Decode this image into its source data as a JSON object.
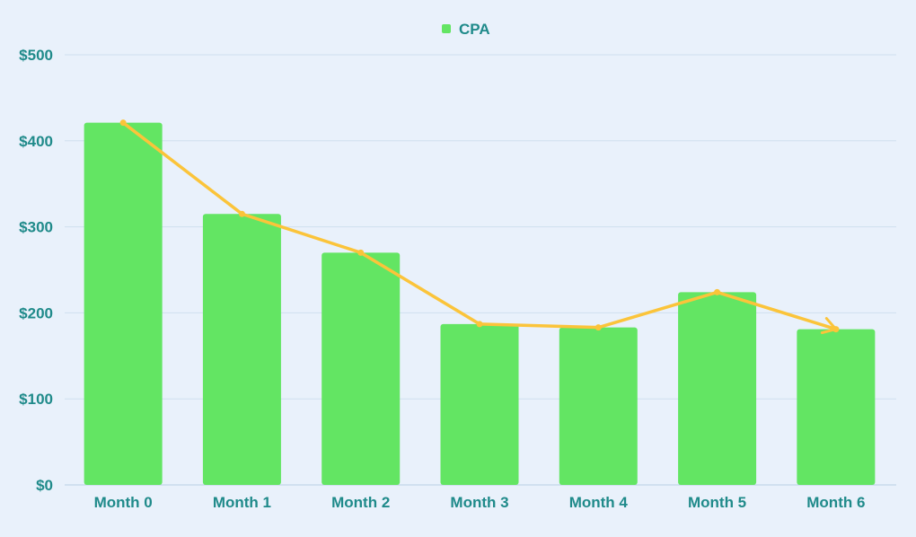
{
  "chart_data": {
    "type": "bar",
    "categories": [
      "Month 0",
      "Month 1",
      "Month 2",
      "Month 3",
      "Month 4",
      "Month 5",
      "Month 6"
    ],
    "series": [
      {
        "name": "CPA",
        "type": "bar",
        "values": [
          421,
          315,
          270,
          187,
          183,
          224,
          181
        ],
        "color": "#63e563"
      },
      {
        "type": "line",
        "values": [
          421,
          315,
          270,
          187,
          183,
          224,
          181
        ],
        "color": "#fbc43a"
      }
    ],
    "ylim": [
      0,
      500
    ],
    "yticks": [
      0,
      100,
      200,
      300,
      400,
      500
    ],
    "ytick_labels": [
      "$0",
      "$100",
      "$200",
      "$300",
      "$400",
      "$500"
    ],
    "grid": true,
    "legend_position": "top-center",
    "title": "",
    "xlabel": "",
    "ylabel": "",
    "colors": {
      "background": "#e9f1fb",
      "gridline": "#cfe0ef",
      "axis_text": "#1f8a8a",
      "bar": "#63e563",
      "line": "#fbc43a"
    }
  }
}
